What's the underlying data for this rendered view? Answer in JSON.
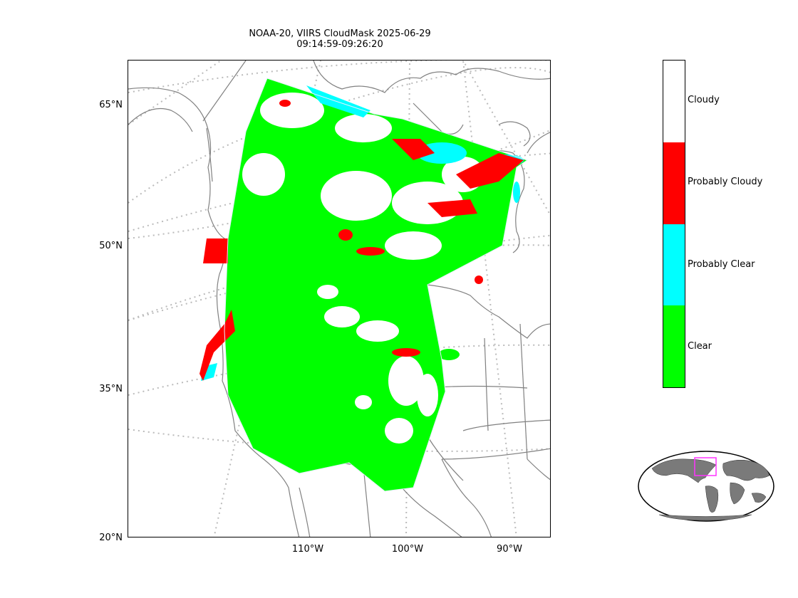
{
  "title": {
    "line1": "NOAA-20, VIIRS CloudMask 2025-06-29",
    "line2": "09:14:59-09:26:20"
  },
  "lat_labels": [
    "65°N",
    "50°N",
    "35°N",
    "20°N"
  ],
  "lon_labels": [
    "110°W",
    "100°W",
    "90°W"
  ],
  "legend": {
    "items": [
      {
        "label": "Cloudy",
        "color": "#ffffff"
      },
      {
        "label": "Probably Cloudy",
        "color": "#ff0000"
      },
      {
        "label": "Probably Clear",
        "color": "#00ffff"
      },
      {
        "label": "Clear",
        "color": "#00ff00"
      }
    ]
  },
  "colors": {
    "coastline": "#808080",
    "graticule": "#bbbbbb",
    "swath_outline": "#e6f0ff",
    "inset_land": "#7a7a7a",
    "inset_box": "#ff33ff"
  }
}
